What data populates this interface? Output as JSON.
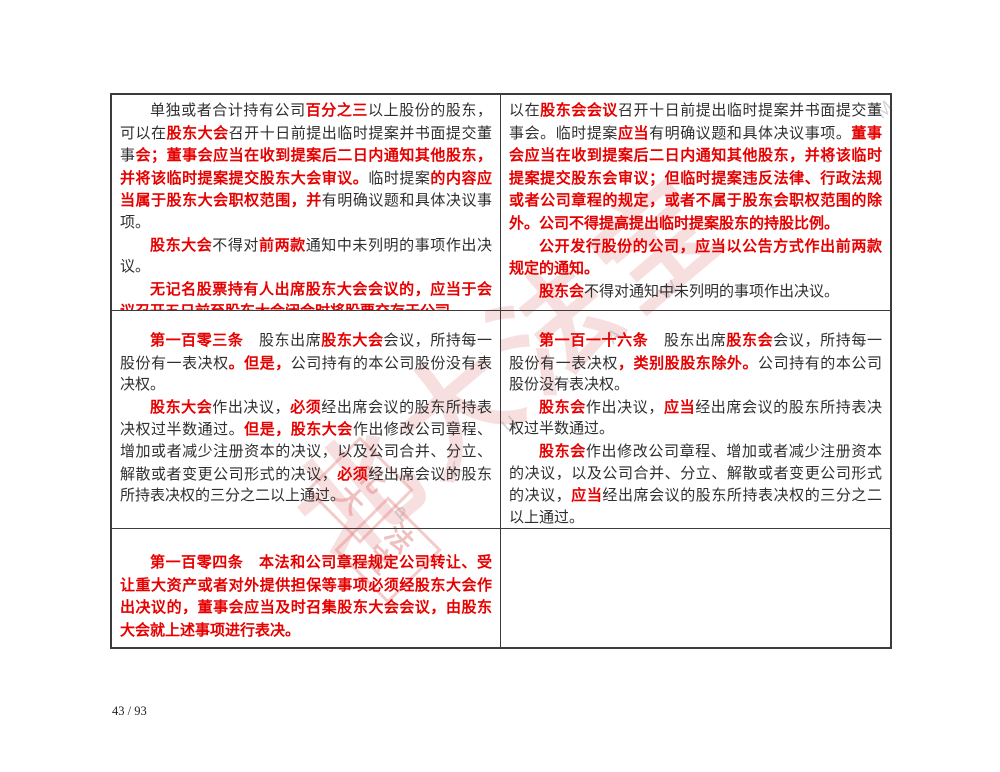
{
  "page": {
    "number_label": "43 / 93"
  },
  "colors": {
    "emphasis_red": "#e60000",
    "body_text": "#2f2f2f",
    "table_border": "#3c3c3c",
    "watermark_pink": "#e99696",
    "page_background": "#ffffff"
  },
  "watermark": {
    "script_text": "北大法宝",
    "letters": "P K U L A W · C O M",
    "seal_chars": [
      "北",
      "大",
      "法",
      "宝"
    ]
  },
  "table": {
    "rows": [
      {
        "left": {
          "paragraphs": [
            {
              "indent": true,
              "runs": [
                {
                  "t": "单独或者合计持有公司",
                  "red": false
                },
                {
                  "t": "百分之三",
                  "red": true
                },
                {
                  "t": "以上股份的股东，可以在",
                  "red": false
                },
                {
                  "t": "股东大会",
                  "red": true
                },
                {
                  "t": "召开十日前提出临时提案并书面提交董事",
                  "red": false
                },
                {
                  "t": "会；董事会应当在收到提案后二日内通知其他股东，并将该临时提案提交股东大会审议。",
                  "red": true
                },
                {
                  "t": "临时提案",
                  "red": false
                },
                {
                  "t": "的内容应当属于股东大会职权范围，并",
                  "red": true
                },
                {
                  "t": "有明确议题和具体决议事项。",
                  "red": false
                }
              ]
            },
            {
              "indent": true,
              "runs": [
                {
                  "t": "股东大会",
                  "red": true
                },
                {
                  "t": "不得对",
                  "red": false
                },
                {
                  "t": "前两款",
                  "red": true
                },
                {
                  "t": "通知中未列明的事项作出决议。",
                  "red": false
                }
              ]
            },
            {
              "indent": true,
              "runs": [
                {
                  "t": "无记名股票持有人出席股东大会会议的，应当于会议召开五日前至股东大会闭会时将股票交存于公司。",
                  "red": true
                }
              ]
            }
          ]
        },
        "right": {
          "paragraphs": [
            {
              "indent": false,
              "runs": [
                {
                  "t": "以在",
                  "red": false
                },
                {
                  "t": "股东会会议",
                  "red": true
                },
                {
                  "t": "召开十日前提出临时提案并书面提交董事会。临时提案",
                  "red": false
                },
                {
                  "t": "应当",
                  "red": true
                },
                {
                  "t": "有明确议题和具体决议事项。",
                  "red": false
                },
                {
                  "t": "董事会应当在收到提案后二日内通知其他股东，并将该临时提案提交股东会审议；但临时提案违反法律、行政法规或者公司章程的规定，或者不属于股东会职权范围的除外。公司不得提高提出临时提案股东的持股比例。",
                  "red": true
                }
              ]
            },
            {
              "indent": true,
              "runs": [
                {
                  "t": "公开发行股份的公司，应当以公告方式作出前两款规定的通知。",
                  "red": true
                }
              ]
            },
            {
              "indent": true,
              "runs": [
                {
                  "t": "股东会",
                  "red": true
                },
                {
                  "t": "不得对通知中未列明的事项作出决议。",
                  "red": false
                }
              ]
            }
          ]
        }
      },
      {
        "left": {
          "paragraphs": [
            {
              "indent": true,
              "runs": [
                {
                  "t": "第一百零三条",
                  "red": true
                },
                {
                  "t": "　股东出席",
                  "red": false
                },
                {
                  "t": "股东大会",
                  "red": true
                },
                {
                  "t": "会议，所持每一股份有一表决权",
                  "red": false
                },
                {
                  "t": "。但是，",
                  "red": true
                },
                {
                  "t": "公司持有的本公司股份没有表决权。",
                  "red": false
                }
              ]
            },
            {
              "indent": true,
              "runs": [
                {
                  "t": "股东大会",
                  "red": true
                },
                {
                  "t": "作出决议，",
                  "red": false
                },
                {
                  "t": "必须",
                  "red": true
                },
                {
                  "t": "经出席会议的股东所持表决权过半数通过。",
                  "red": false
                },
                {
                  "t": "但是，股东大会",
                  "red": true
                },
                {
                  "t": "作出修改公司章程、增加或者减少注册资本的决议，以及公司合并、分立、解散或者变更公司形式的决议，",
                  "red": false
                },
                {
                  "t": "必须",
                  "red": true
                },
                {
                  "t": "经出席会议的股东所持表决权的三分之二以上通过。",
                  "red": false
                }
              ]
            }
          ]
        },
        "right": {
          "paragraphs": [
            {
              "indent": true,
              "runs": [
                {
                  "t": "第一百一十六条",
                  "red": true
                },
                {
                  "t": "　股东出席",
                  "red": false
                },
                {
                  "t": "股东会",
                  "red": true
                },
                {
                  "t": "会议，所持每一股份有一表决权",
                  "red": false
                },
                {
                  "t": "，类别股股东除外。",
                  "red": true
                },
                {
                  "t": "公司持有的本公司股份没有表决权。",
                  "red": false
                }
              ]
            },
            {
              "indent": true,
              "runs": [
                {
                  "t": "股东会",
                  "red": true
                },
                {
                  "t": "作出决议，",
                  "red": false
                },
                {
                  "t": "应当",
                  "red": true
                },
                {
                  "t": "经出席会议的股东所持表决权过半数通过。",
                  "red": false
                }
              ]
            },
            {
              "indent": true,
              "runs": [
                {
                  "t": "股东会",
                  "red": true
                },
                {
                  "t": "作出修改公司章程、增加或者减少注册资本的决议，以及公司合并、分立、解散或者变更公司形式的决议，",
                  "red": false
                },
                {
                  "t": "应当",
                  "red": true
                },
                {
                  "t": "经出席会议的股东所持表决权的三分之二以上通过。",
                  "red": false
                }
              ]
            }
          ]
        }
      },
      {
        "left": {
          "paragraphs": [
            {
              "indent": true,
              "runs": [
                {
                  "t": "第一百零四条　本法和公司章程规定公司转让、受让重大资产或者对外提供担保等事项必须经股东大会作出决议的，董事会应当及时召集股东大会会议，由股东大会就上述事项进行表决。",
                  "red": true
                }
              ]
            }
          ]
        },
        "right": {
          "paragraphs": []
        }
      }
    ]
  }
}
